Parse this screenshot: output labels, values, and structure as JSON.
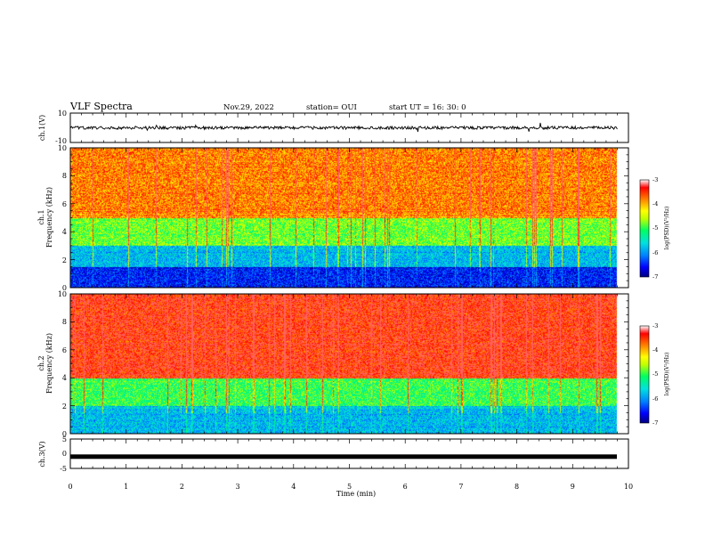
{
  "header": {
    "title": "VLF Spectra",
    "date": "Nov.29, 2022",
    "station": "station= OUI",
    "start": "start  UT =   16: 30: 0"
  },
  "panels": {
    "ch1_wave": {
      "label": "ch.1(V)",
      "ticks": [
        "10",
        "-10"
      ]
    },
    "ch1_spec": {
      "label_line1": "ch.1",
      "label_line2": "Frequency (kHz)",
      "ticks": [
        "10",
        "8",
        "6",
        "4",
        "2",
        "0"
      ]
    },
    "ch2_spec": {
      "label_line1": "ch.2",
      "label_line2": "Frequency (kHz)",
      "ticks": [
        "10",
        "8",
        "6",
        "4",
        "2",
        "0"
      ]
    },
    "ch3_wave": {
      "label": "ch.3(V)",
      "ticks": [
        "5",
        "0",
        "-5"
      ]
    }
  },
  "colorbar": {
    "label": "log(PSD)(V²/Hz)",
    "ticks": [
      "-3",
      "-4",
      "-5",
      "-6",
      "-7"
    ],
    "colors": [
      "#000080",
      "#0000ff",
      "#0080ff",
      "#00e0e0",
      "#00ff60",
      "#c0ff00",
      "#ffff00",
      "#ff8000",
      "#ff0000",
      "#ffffff"
    ]
  },
  "xaxis": {
    "label": "Time (min)",
    "ticks": [
      "0",
      "1",
      "2",
      "3",
      "4",
      "5",
      "6",
      "7",
      "8",
      "9",
      "10"
    ]
  },
  "chart_data": {
    "type": "heatmap",
    "title": "VLF Spectra",
    "xlabel": "Time (min)",
    "xlim": [
      0,
      10
    ],
    "subplots": [
      {
        "name": "ch.1(V)",
        "type": "line",
        "ylim": [
          -10,
          10
        ],
        "approx_mean": 0,
        "approx_amplitude": 2
      },
      {
        "name": "ch.1 Frequency (kHz)",
        "type": "heatmap",
        "ylim": [
          0,
          10
        ],
        "zlim": [
          -7,
          -3
        ],
        "data_end_min": 9.8,
        "approx_log_psd_by_band_khz": [
          {
            "band": [
              0,
              1.5
            ],
            "log_psd": -6.5
          },
          {
            "band": [
              1.5,
              3
            ],
            "log_psd": -5.8
          },
          {
            "band": [
              3,
              5
            ],
            "log_psd": -4.8
          },
          {
            "band": [
              5,
              10
            ],
            "log_psd": -3.8
          }
        ]
      },
      {
        "name": "ch.2 Frequency (kHz)",
        "type": "heatmap",
        "ylim": [
          0,
          10
        ],
        "zlim": [
          -7,
          -3
        ],
        "data_end_min": 9.8,
        "approx_log_psd_by_band_khz": [
          {
            "band": [
              0,
              2
            ],
            "log_psd": -5.8
          },
          {
            "band": [
              2,
              4
            ],
            "log_psd": -5.0
          },
          {
            "band": [
              4,
              10
            ],
            "log_psd": -3.4
          }
        ]
      },
      {
        "name": "ch.3(V)",
        "type": "line",
        "ylim": [
          -5,
          5
        ],
        "approx_mean": -1,
        "approx_amplitude": 0.2
      }
    ]
  }
}
